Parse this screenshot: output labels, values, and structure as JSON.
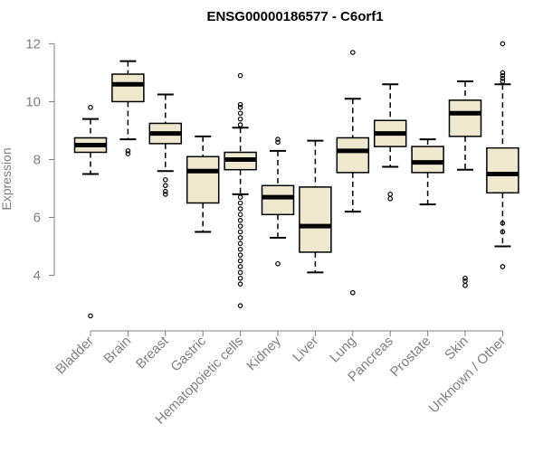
{
  "chart_data": {
    "type": "boxplot",
    "title": "ENSG00000186577 - C6orf1",
    "xlabel": "",
    "ylabel": "Expression",
    "ylim": [
      2.3,
      12.2
    ],
    "yticks": [
      4,
      6,
      8,
      10,
      12
    ],
    "grid": false,
    "legend": "none",
    "colors": {
      "box_fill": "#efe8d0",
      "box_stroke": "#000000",
      "axis": "#808080",
      "tick_text": "#808080"
    },
    "categories": [
      "Bladder",
      "Brain",
      "Breast",
      "Gastric",
      "Hematopoietic cells",
      "Kidney",
      "Liver",
      "Lung",
      "Pancreas",
      "Prostate",
      "Skin",
      "Unknown / Other"
    ],
    "boxes": [
      {
        "category": "Bladder",
        "whisker_low": 7.5,
        "q1": 8.25,
        "median": 8.5,
        "q3": 8.75,
        "whisker_high": 9.4,
        "outliers": [
          9.8,
          2.6
        ]
      },
      {
        "category": "Brain",
        "whisker_low": 8.7,
        "q1": 10.0,
        "median": 10.6,
        "q3": 10.95,
        "whisker_high": 11.4,
        "outliers": [
          8.3,
          8.2
        ]
      },
      {
        "category": "Breast",
        "whisker_low": 7.6,
        "q1": 8.55,
        "median": 8.9,
        "q3": 9.25,
        "whisker_high": 10.25,
        "outliers": [
          7.3,
          7.1,
          6.9,
          6.8
        ]
      },
      {
        "category": "Gastric",
        "whisker_low": 5.5,
        "q1": 6.5,
        "median": 7.6,
        "q3": 8.1,
        "whisker_high": 8.8,
        "outliers": []
      },
      {
        "category": "Hematopoietic cells",
        "whisker_low": 6.8,
        "q1": 7.65,
        "median": 8.0,
        "q3": 8.25,
        "whisker_high": 9.1,
        "outliers": [
          10.9,
          9.9,
          9.8,
          9.6,
          9.4,
          9.2,
          6.7,
          6.5,
          6.3,
          6.1,
          5.9,
          5.7,
          5.5,
          5.3,
          5.1,
          4.9,
          4.7,
          4.5,
          4.3,
          4.1,
          3.9,
          3.7,
          2.95
        ]
      },
      {
        "category": "Kidney",
        "whisker_low": 5.3,
        "q1": 6.1,
        "median": 6.7,
        "q3": 7.1,
        "whisker_high": 8.3,
        "outliers": [
          8.7,
          8.6,
          4.4
        ]
      },
      {
        "category": "Liver",
        "whisker_low": 4.1,
        "q1": 4.8,
        "median": 5.7,
        "q3": 7.05,
        "whisker_high": 8.65,
        "outliers": []
      },
      {
        "category": "Lung",
        "whisker_low": 6.2,
        "q1": 7.55,
        "median": 8.3,
        "q3": 8.75,
        "whisker_high": 10.1,
        "outliers": [
          11.7,
          3.4
        ]
      },
      {
        "category": "Pancreas",
        "whisker_low": 7.75,
        "q1": 8.45,
        "median": 8.9,
        "q3": 9.35,
        "whisker_high": 10.6,
        "outliers": [
          6.8,
          6.65
        ]
      },
      {
        "category": "Prostate",
        "whisker_low": 6.45,
        "q1": 7.55,
        "median": 7.9,
        "q3": 8.45,
        "whisker_high": 8.7,
        "outliers": []
      },
      {
        "category": "Skin",
        "whisker_low": 7.65,
        "q1": 8.8,
        "median": 9.6,
        "q3": 10.05,
        "whisker_high": 10.7,
        "outliers": [
          3.9,
          3.8,
          3.65
        ]
      },
      {
        "category": "Unknown / Other",
        "whisker_low": 5.0,
        "q1": 6.85,
        "median": 7.5,
        "q3": 8.4,
        "whisker_high": 10.6,
        "outliers": [
          12.0,
          11.0,
          10.9,
          10.8,
          10.7,
          5.8,
          5.5,
          4.3
        ]
      }
    ]
  }
}
